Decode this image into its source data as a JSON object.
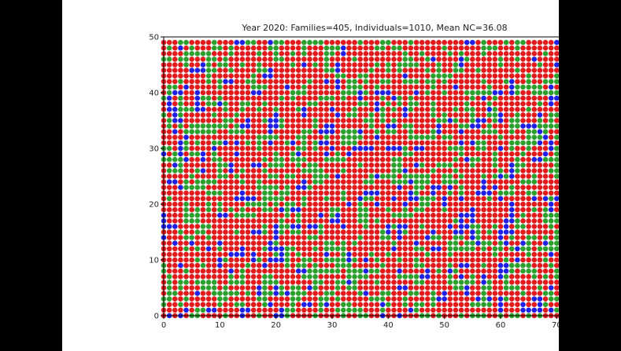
{
  "chart_data": {
    "type": "scatter",
    "title": "Year 2020: Families=405, Individuals=1010, Mean NC=36.08",
    "xlabel": "",
    "ylabel": "",
    "xlim": [
      0,
      75
    ],
    "ylim": [
      0,
      50
    ],
    "x_ticks": [
      0,
      10,
      20,
      30,
      40,
      50,
      60,
      70
    ],
    "y_ticks": [
      0,
      10,
      20,
      30,
      40,
      50
    ],
    "grid": false,
    "legend": "none",
    "grid_points": {
      "columns": 75,
      "rows": 50
    },
    "colors": {
      "red": "#e31a1c",
      "green": "#2ca02c",
      "blue": "#1f1fe6"
    },
    "color_proportions": {
      "red": 0.72,
      "green": 0.19,
      "blue": 0.09
    },
    "notes": "Each integer lattice point (x 0–74, y 0–49) is plotted as a dot colored red, green or blue."
  }
}
